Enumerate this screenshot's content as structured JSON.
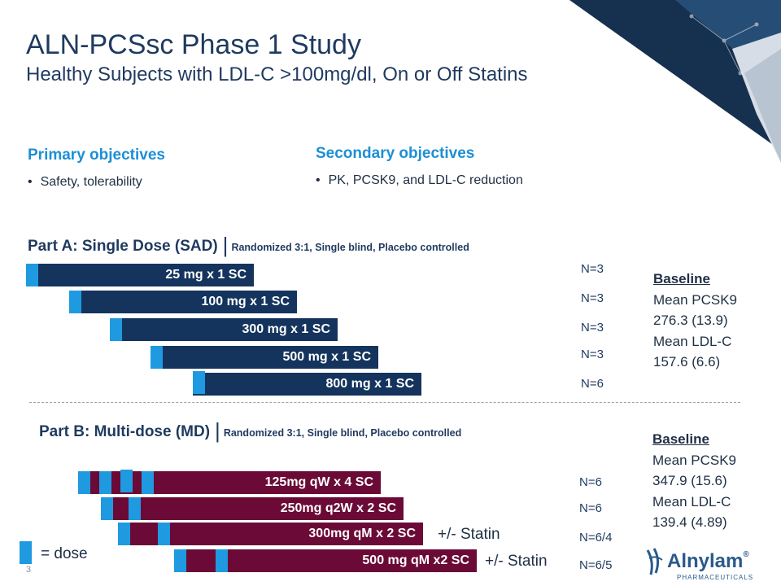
{
  "header": {
    "title": "ALN-PCSsc Phase 1 Study",
    "subtitle": "Healthy Subjects with LDL-C >100mg/dl, On or Off Statins"
  },
  "objectives": {
    "primary": {
      "heading": "Primary objectives",
      "bullet": "•",
      "items": [
        "Safety, tolerability"
      ]
    },
    "secondary": {
      "heading": "Secondary objectives",
      "bullet": "•",
      "items": [
        "PK, PCSK9, and LDL-C reduction"
      ]
    }
  },
  "part_a": {
    "heading": "Part A: Single Dose (SAD)",
    "separator": "|",
    "subheading": "Randomized 3:1, Single blind, Placebo controlled",
    "cohorts": [
      {
        "label": "25 mg x 1 SC",
        "n": "N=3"
      },
      {
        "label": "100 mg x 1 SC",
        "n": "N=3"
      },
      {
        "label": "300 mg x 1 SC",
        "n": "N=3"
      },
      {
        "label": "500 mg x 1 SC",
        "n": "N=3"
      },
      {
        "label": "800 mg x 1 SC",
        "n": "N=6"
      }
    ],
    "baseline": {
      "heading": "Baseline",
      "lines": [
        "Mean PCSK9",
        "276.3 (13.9)",
        "Mean LDL-C",
        "157.6 (6.6)"
      ]
    }
  },
  "part_b": {
    "heading": "Part B: Multi-dose (MD)",
    "separator": "|",
    "subheading": "Randomized 3:1, Single blind, Placebo controlled",
    "cohorts": [
      {
        "label": "125mg qW x 4 SC",
        "n": "N=6",
        "statin": ""
      },
      {
        "label": "250mg q2W x 2 SC",
        "n": "N=6",
        "statin": ""
      },
      {
        "label": "300mg qM x 2 SC",
        "n": "N=6/4",
        "statin": "+/- Statin"
      },
      {
        "label": "500 mg qM x2 SC",
        "n": "N=6/5",
        "statin": "+/- Statin"
      }
    ],
    "baseline": {
      "heading": "Baseline",
      "lines": [
        "Mean PCSK9",
        "347.9 (15.6)",
        "Mean LDL-C",
        "139.4 (4.89)"
      ]
    }
  },
  "legend": {
    "label": "= dose"
  },
  "footer": {
    "page_number": "3"
  },
  "logo": {
    "name": "Alnylam",
    "registered": "®",
    "tagline": "PHARMACEUTICALS"
  },
  "colors": {
    "navy": "#14345e",
    "maroon": "#6b0a36",
    "dose_blue": "#1f9ae0",
    "heading_blue": "#1d8fd6"
  }
}
